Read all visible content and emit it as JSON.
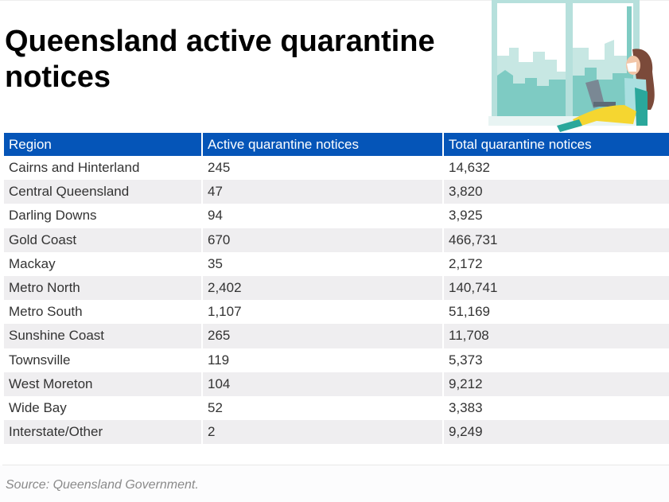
{
  "title": "Queensland active quarantine notices",
  "illustration": {
    "icon": "woman-with-laptop-by-window-illustration",
    "colors": {
      "frame": "#b6e0dc",
      "city": "#7ecbc3",
      "city_light": "#c7e7e3",
      "pants": "#f5d630",
      "hair": "#7b4a3a",
      "top": "#a9dfe0"
    }
  },
  "table": {
    "header_color": "#0555b8",
    "stripe_color": "#efeef0",
    "columns": [
      "Region",
      "Active quarantine notices",
      "Total quarantine notices"
    ],
    "rows": [
      [
        "Cairns and Hinterland",
        "245",
        "14,632"
      ],
      [
        "Central Queensland",
        "47",
        "3,820"
      ],
      [
        "Darling Downs",
        "94",
        "3,925"
      ],
      [
        "Gold Coast",
        "670",
        "466,731"
      ],
      [
        "Mackay",
        "35",
        "2,172"
      ],
      [
        "Metro North",
        "2,402",
        "140,741"
      ],
      [
        "Metro South",
        "1,107",
        "51,169"
      ],
      [
        "Sunshine Coast",
        "265",
        "11,708"
      ],
      [
        "Townsville",
        "119",
        "5,373"
      ],
      [
        "West Moreton",
        "104",
        "9,212"
      ],
      [
        "Wide Bay",
        "52",
        "3,383"
      ],
      [
        "Interstate/Other",
        "2",
        "9,249"
      ]
    ]
  },
  "source": "Source: Queensland Government."
}
